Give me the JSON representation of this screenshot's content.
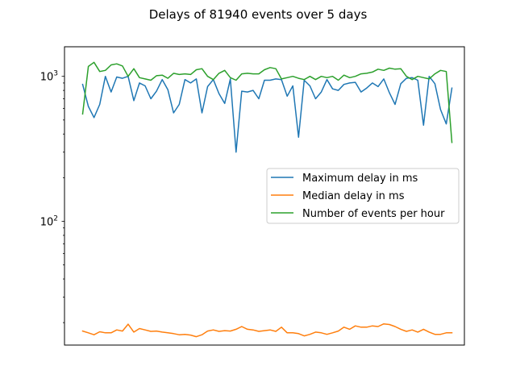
{
  "chart_data": {
    "type": "line",
    "title": "Delays of 81940 events over 5 days",
    "xlabel": "",
    "ylabel": "",
    "yscale": "log",
    "ylim": [
      14,
      1600
    ],
    "xlim": [
      -3.2,
      67.2
    ],
    "grid": false,
    "legend_position": "center-right",
    "y_ticks": [
      {
        "value": 100,
        "base": "10",
        "exp": "2"
      },
      {
        "value": 1000,
        "base": "10",
        "exp": "3"
      }
    ],
    "series": [
      {
        "name": "Maximum delay in ms",
        "color": "#1f77b4",
        "values": [
          880,
          620,
          520,
          640,
          1000,
          780,
          990,
          970,
          1000,
          680,
          900,
          860,
          700,
          790,
          950,
          810,
          560,
          640,
          950,
          900,
          960,
          560,
          850,
          950,
          760,
          650,
          960,
          300,
          790,
          780,
          800,
          700,
          940,
          940,
          960,
          950,
          730,
          860,
          380,
          940,
          860,
          700,
          780,
          950,
          820,
          800,
          880,
          900,
          910,
          780,
          830,
          900,
          850,
          960,
          770,
          640,
          890,
          970,
          980,
          940,
          460,
          1000,
          890,
          590,
          470,
          830
        ]
      },
      {
        "name": "Median delay in ms",
        "color": "#ff7f0e",
        "values": [
          17.5,
          17.0,
          16.5,
          17.3,
          17.0,
          17.0,
          17.8,
          17.5,
          19.5,
          17.2,
          18.2,
          17.8,
          17.4,
          17.5,
          17.2,
          17.0,
          16.8,
          16.5,
          16.6,
          16.4,
          16.0,
          16.5,
          17.5,
          17.8,
          17.4,
          17.6,
          17.5,
          18.0,
          18.8,
          18.0,
          17.8,
          17.4,
          17.6,
          17.8,
          17.4,
          18.6,
          17.0,
          17.0,
          16.8,
          16.2,
          16.6,
          17.2,
          17.0,
          16.6,
          17.0,
          17.5,
          18.6,
          18.0,
          19.0,
          18.6,
          18.6,
          19.0,
          18.8,
          19.6,
          19.4,
          18.8,
          18.0,
          17.4,
          17.8,
          17.2,
          18.0,
          17.2,
          16.6,
          16.6,
          17.0,
          17.0
        ]
      },
      {
        "name": "Number of events per hour",
        "color": "#2ca02c",
        "values": [
          550,
          1170,
          1250,
          1080,
          1100,
          1200,
          1220,
          1180,
          1000,
          1130,
          980,
          960,
          940,
          1010,
          1020,
          970,
          1050,
          1030,
          1040,
          1030,
          1110,
          1130,
          1000,
          950,
          1050,
          1100,
          980,
          940,
          1040,
          1050,
          1040,
          1040,
          1110,
          1150,
          1130,
          960,
          980,
          1000,
          970,
          950,
          1000,
          950,
          1000,
          980,
          1000,
          940,
          1020,
          980,
          1000,
          1040,
          1050,
          1070,
          1120,
          1100,
          1140,
          1120,
          1130,
          1000,
          950,
          1000,
          980,
          960,
          1040,
          1100,
          1080,
          350
        ]
      }
    ]
  }
}
